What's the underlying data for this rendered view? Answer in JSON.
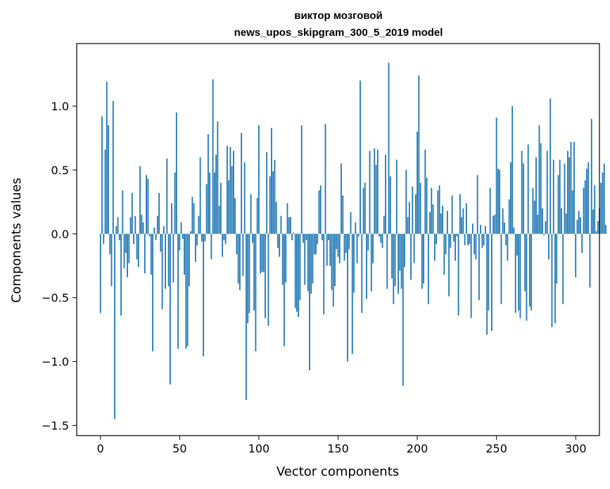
{
  "chart_data": {
    "type": "bar",
    "title_line1": "виктор мозговой",
    "title_line2": "news_upos_skipgram_300_5_2019 model",
    "xlabel": "Vector components",
    "ylabel": "Components values",
    "xlim": [
      -15,
      315
    ],
    "ylim": [
      -1.58,
      1.49
    ],
    "xticks": [
      0,
      50,
      100,
      150,
      200,
      250,
      300
    ],
    "xtick_labels": [
      "0",
      "50",
      "100",
      "150",
      "200",
      "250",
      "300"
    ],
    "yticks": [
      -1.5,
      -1.0,
      -0.5,
      0.0,
      0.5,
      1.0
    ],
    "ytick_labels": [
      "−1.5",
      "−1.0",
      "−0.5",
      "0.0",
      "0.5",
      "1.0"
    ],
    "bar_color": "#1f77b4",
    "grid": false,
    "values": [
      -0.62,
      0.92,
      -0.08,
      0.66,
      1.19,
      0.85,
      -0.16,
      -0.41,
      1.04,
      -1.45,
      0.06,
      0.13,
      -0.05,
      -0.64,
      0.34,
      -0.27,
      -0.15,
      -0.34,
      -0.23,
      0.13,
      0.32,
      -0.08,
      0.14,
      -0.2,
      -0.26,
      0.53,
      0.15,
      0.09,
      -0.31,
      0.46,
      0.43,
      -0.02,
      -0.32,
      -0.92,
      0.05,
      -0.05,
      0.14,
      0.32,
      -0.14,
      -0.59,
      0.06,
      -0.43,
      0.59,
      -0.41,
      -1.18,
      0.24,
      -0.38,
      0.48,
      0.95,
      -0.9,
      -0.13,
      0.09,
      -0.04,
      -0.32,
      -0.9,
      -0.88,
      -0.41,
      0.02,
      0.29,
      0.24,
      -0.22,
      -0.09,
      0.14,
      0.6,
      -0.06,
      -0.96,
      -0.06,
      0.39,
      0.78,
      0.48,
      -0.2,
      1.21,
      0.48,
      0.62,
      0.88,
      0.22,
      0.4,
      -0.18,
      -0.05,
      -0.08,
      0.69,
      0.42,
      0.68,
      0.53,
      0.65,
      0.28,
      -0.16,
      -0.39,
      -0.44,
      0.79,
      -0.33,
      0.56,
      -1.3,
      -0.7,
      -0.62,
      0.31,
      -0.07,
      -0.6,
      -0.92,
      0.28,
      0.85,
      -0.31,
      -0.3,
      -0.3,
      -0.66,
      0.64,
      -0.72,
      0.45,
      0.83,
      0.49,
      0.58,
      0.25,
      -0.11,
      -0.18,
      0.14,
      -0.4,
      -0.88,
      -0.38,
      0.24,
      0.13,
      0.13,
      -0.05,
      0.01,
      -0.58,
      -0.61,
      -0.65,
      -0.52,
      0.85,
      -0.07,
      -0.4,
      -0.05,
      -0.45,
      -1.07,
      -0.47,
      -0.39,
      -0.16,
      -0.16,
      -0.08,
      0.34,
      0.38,
      -0.05,
      -0.63,
      0.86,
      -0.25,
      -0.05,
      -0.25,
      -0.44,
      -0.57,
      -0.41,
      -0.12,
      -0.18,
      -0.23,
      0.55,
      0.3,
      -0.21,
      -0.15,
      -1.0,
      -0.12,
      0.17,
      -0.94,
      -0.46,
      0.09,
      -0.23,
      -0.02,
      1.2,
      -0.62,
      0.36,
      0.4,
      -0.51,
      -0.13,
      0.65,
      -0.45,
      -0.23,
      0.67,
      0.54,
      0.66,
      -0.02,
      -0.07,
      -0.11,
      0.14,
      0.62,
      -0.43,
      1.34,
      0.45,
      -0.35,
      -0.55,
      -0.41,
      0.58,
      -0.47,
      -0.29,
      -0.43,
      -1.19,
      -0.26,
      0.5,
      0.13,
      0.25,
      -0.36,
      0.37,
      -0.23,
      0.31,
      0.8,
      1.24,
      0.4,
      -0.43,
      -0.39,
      0.66,
      0.44,
      -0.55,
      0.17,
      0.36,
      0.23,
      -0.21,
      -0.08,
      0.34,
      0.38,
      0.16,
      0.22,
      -0.32,
      -0.16,
      0.18,
      -0.49,
      -0.11,
      0.3,
      -0.06,
      -0.21,
      -0.02,
      -0.64,
      0.31,
      0.13,
      0.2,
      -0.09,
      0.24,
      -0.09,
      -0.08,
      -0.66,
      0.08,
      -0.16,
      -0.2,
      0.46,
      -0.52,
      0.07,
      -0.11,
      -0.09,
      0.06,
      -0.79,
      -0.6,
      0.36,
      -0.76,
      0.14,
      0.15,
      0.91,
      0.51,
      0.5,
      -0.55,
      0.2,
      0.09,
      -0.09,
      -0.21,
      0.27,
      0.56,
      1.0,
      0.05,
      -0.62,
      -0.17,
      -0.6,
      -0.66,
      0.65,
      0.55,
      -0.45,
      -0.68,
      0.7,
      -0.57,
      -0.6,
      0.36,
      0.26,
      0.6,
      0.15,
      0.85,
      0.71,
      0.2,
      -0.01,
      0.1,
      0.65,
      -0.2,
      1.06,
      -0.73,
      0.58,
      -0.7,
      -0.39,
      0.46,
      0.58,
      0.2,
      -0.55,
      0.55,
      0.16,
      0.65,
      0.6,
      0.72,
      0.34,
      0.72,
      -0.34,
      0.11,
      0.18,
      0.13,
      -0.15,
      0.36,
      0.42,
      0.51,
      0.56,
      -0.42,
      0.9,
      0.19,
      0.38,
      0.02,
      0.1,
      0.2,
      0.4,
      0.48,
      0.55,
      0.07
    ]
  }
}
